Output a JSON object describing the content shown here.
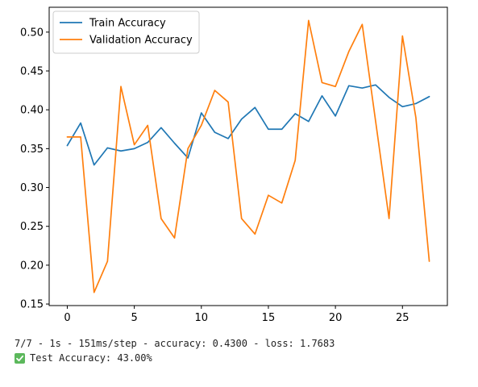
{
  "chart_data": {
    "type": "line",
    "x": [
      0,
      1,
      2,
      3,
      4,
      5,
      6,
      7,
      8,
      9,
      10,
      11,
      12,
      13,
      14,
      15,
      16,
      17,
      18,
      19,
      20,
      21,
      22,
      23,
      24,
      25,
      26,
      27
    ],
    "series": [
      {
        "name": "Train Accuracy",
        "color": "#1f77b4",
        "values": [
          0.354,
          0.383,
          0.329,
          0.351,
          0.347,
          0.35,
          0.358,
          0.377,
          0.357,
          0.338,
          0.396,
          0.371,
          0.363,
          0.388,
          0.403,
          0.375,
          0.375,
          0.395,
          0.385,
          0.418,
          0.392,
          0.431,
          0.428,
          0.432,
          0.416,
          0.404,
          0.408,
          0.417
        ]
      },
      {
        "name": "Validation Accuracy",
        "color": "#ff7f0e",
        "values": [
          0.365,
          0.365,
          0.165,
          0.205,
          0.43,
          0.355,
          0.38,
          0.26,
          0.235,
          0.35,
          0.38,
          0.425,
          0.41,
          0.26,
          0.24,
          0.29,
          0.28,
          0.335,
          0.515,
          0.435,
          0.43,
          0.475,
          0.51,
          0.385,
          0.26,
          0.495,
          0.39,
          0.205
        ]
      }
    ],
    "xlim": [
      -1.35,
      28.35
    ],
    "ylim": [
      0.148,
      0.532
    ],
    "xticks": [
      0,
      5,
      10,
      15,
      20,
      25
    ],
    "xtick_labels": [
      "0",
      "5",
      "10",
      "15",
      "20",
      "25"
    ],
    "yticks": [
      0.15,
      0.2,
      0.25,
      0.3,
      0.35,
      0.4,
      0.45,
      0.5
    ],
    "ytick_labels": [
      "0.15",
      "0.20",
      "0.25",
      "0.30",
      "0.35",
      "0.40",
      "0.45",
      "0.50"
    ],
    "legend_position": "top-left",
    "grid": false,
    "title": "",
    "xlabel": "",
    "ylabel": ""
  },
  "console": {
    "log_line": "7/7 - 1s - 151ms/step - accuracy: 0.4300 - loss: 1.7683",
    "result_line": "Test Accuracy: 43.00%",
    "check_icon": "check-mark-icon"
  }
}
